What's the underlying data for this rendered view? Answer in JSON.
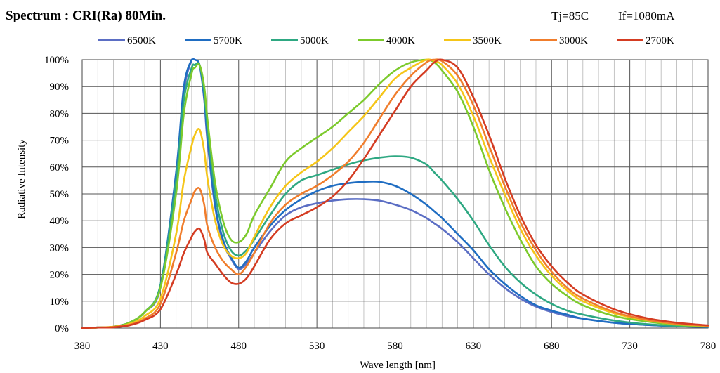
{
  "header": {
    "title": "Spectrum : CRI(Ra) 80Min.",
    "tj": "Tj=85C",
    "if": "If=1080mA"
  },
  "chart_data": {
    "type": "line",
    "xlabel": "Wave length [nm]",
    "ylabel": "Radiative Intensity",
    "xlim": [
      380,
      780
    ],
    "ylim": [
      0,
      100
    ],
    "x_ticks": [
      380,
      430,
      480,
      530,
      580,
      630,
      680,
      730,
      780
    ],
    "y_ticks": [
      "0%",
      "10%",
      "20%",
      "30%",
      "40%",
      "50%",
      "60%",
      "70%",
      "80%",
      "90%",
      "100%"
    ],
    "minor_x_step": 10,
    "grid": true,
    "legend_position": "top",
    "x": [
      380,
      390,
      400,
      410,
      420,
      430,
      440,
      445,
      450,
      452,
      455,
      458,
      460,
      465,
      470,
      475,
      480,
      485,
      490,
      500,
      510,
      520,
      530,
      540,
      550,
      560,
      570,
      580,
      590,
      600,
      605,
      610,
      620,
      630,
      640,
      650,
      660,
      670,
      680,
      690,
      700,
      720,
      740,
      760,
      780
    ],
    "series": [
      {
        "name": "6500K",
        "color": "#5b6ec4",
        "values": [
          0,
          0.2,
          0.5,
          2,
          6,
          15,
          55,
          88,
          100,
          100,
          98,
          85,
          70,
          45,
          32,
          26,
          22,
          24,
          28,
          36,
          42,
          45,
          46.5,
          47.5,
          48,
          48,
          47.5,
          46,
          44,
          41,
          39,
          37,
          32,
          26,
          20,
          15,
          11,
          8,
          6,
          4.5,
          3.5,
          2,
          1.2,
          0.7,
          0.4
        ]
      },
      {
        "name": "5700K",
        "color": "#1f6dc2",
        "values": [
          0,
          0.2,
          0.5,
          2,
          6,
          16,
          58,
          90,
          100,
          100,
          98,
          86,
          72,
          46,
          33,
          26.5,
          22.5,
          25,
          30,
          38,
          44,
          48,
          51,
          53,
          54,
          54.5,
          54.5,
          53,
          50,
          46,
          43.5,
          41,
          35,
          29,
          22,
          16.5,
          12,
          8.5,
          6.5,
          5,
          3.5,
          2,
          1.2,
          0.7,
          0.4
        ]
      },
      {
        "name": "5000K",
        "color": "#2ea882",
        "values": [
          0,
          0.2,
          0.5,
          2,
          6,
          16,
          55,
          85,
          97,
          98,
          98,
          88,
          75,
          50,
          36,
          29,
          27,
          29,
          33,
          42,
          50,
          55,
          57,
          59,
          61,
          62.5,
          63.5,
          64,
          63.5,
          61,
          58,
          55,
          48,
          40,
          31,
          23,
          17,
          12.5,
          9,
          6.5,
          5,
          2.8,
          1.5,
          0.8,
          0.5
        ]
      },
      {
        "name": "4000K",
        "color": "#7cca2c",
        "values": [
          0,
          0.2,
          0.5,
          2,
          6,
          15,
          50,
          80,
          95,
          97,
          98,
          90,
          78,
          54,
          40,
          33,
          32,
          35,
          42,
          52,
          62,
          67,
          71,
          75,
          80,
          85,
          91,
          96,
          99,
          100,
          99,
          96,
          88,
          75,
          59,
          45,
          33,
          23,
          16.5,
          12,
          8.5,
          4.5,
          2.5,
          1.2,
          0.6
        ]
      },
      {
        "name": "3500K",
        "color": "#f5c518",
        "values": [
          0,
          0.2,
          0.5,
          1.5,
          4.5,
          11,
          35,
          55,
          68,
          72,
          74,
          66,
          56,
          40,
          31,
          27,
          26,
          28,
          34,
          45,
          53,
          58,
          62,
          67,
          73,
          79,
          86,
          93,
          97,
          100,
          99.5,
          98,
          91,
          79,
          64,
          50,
          37,
          27,
          19.5,
          14,
          10,
          5.5,
          3,
          1.5,
          0.8
        ]
      },
      {
        "name": "3000K",
        "color": "#f07d2c",
        "values": [
          0,
          0.2,
          0.4,
          1.2,
          3.5,
          9,
          28,
          40,
          48,
          51,
          52,
          46,
          38,
          30,
          25,
          22,
          20,
          23,
          28,
          39,
          46,
          50,
          53,
          57,
          62,
          69,
          78,
          87,
          94,
          99,
          100,
          99.5,
          94,
          83,
          68,
          53,
          39.5,
          29,
          21,
          15,
          11,
          6,
          3.2,
          1.6,
          0.9
        ]
      },
      {
        "name": "2700K",
        "color": "#d43c22",
        "values": [
          0,
          0.2,
          0.3,
          1,
          3,
          7,
          20,
          28,
          34,
          36,
          37,
          33,
          28,
          24,
          20,
          17,
          16.5,
          18.5,
          23,
          33,
          39,
          42,
          45,
          49,
          55,
          63,
          72,
          81,
          90,
          96,
          99,
          100,
          97,
          86,
          72,
          56,
          42,
          31,
          23,
          17,
          12.5,
          7,
          3.8,
          2,
          1
        ]
      }
    ]
  }
}
